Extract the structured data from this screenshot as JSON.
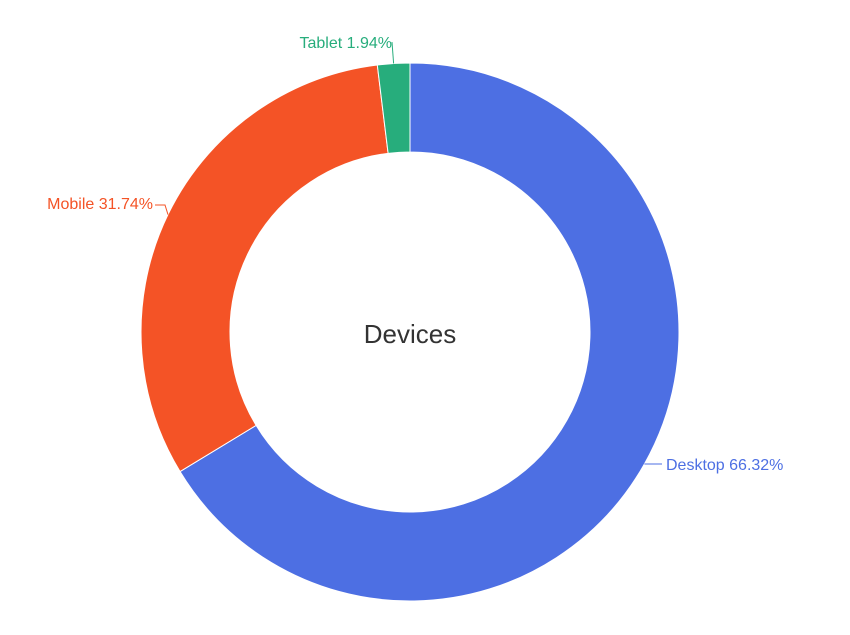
{
  "chart_data": {
    "type": "pie",
    "title": "Devices",
    "categories": [
      "Desktop",
      "Mobile",
      "Tablet"
    ],
    "values": [
      66.32,
      31.74,
      1.94
    ],
    "unit": "%",
    "labels": [
      "Desktop 66.32%",
      "Mobile 31.74%",
      "Tablet 1.94%"
    ],
    "colors": [
      "#4d6fe3",
      "#f45326",
      "#27ad7c"
    ]
  }
}
